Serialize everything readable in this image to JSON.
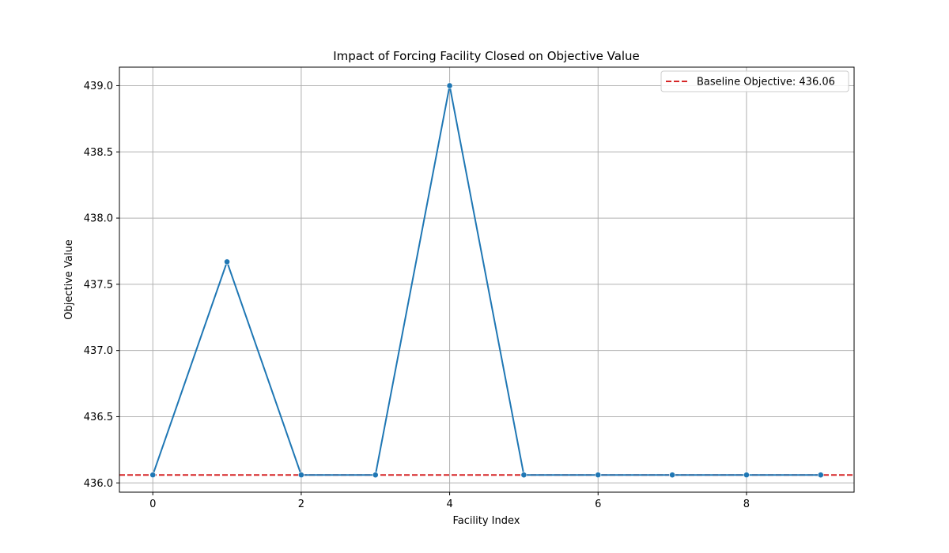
{
  "chart_data": {
    "type": "line",
    "title": "Impact of Forcing Facility Closed on Objective Value",
    "xlabel": "Facility Index",
    "ylabel": "Objective Value",
    "x": [
      0,
      1,
      2,
      3,
      4,
      5,
      6,
      7,
      8,
      9
    ],
    "series": [
      {
        "values": [
          436.06,
          437.67,
          436.06,
          436.06,
          439.0,
          436.06,
          436.06,
          436.06,
          436.06,
          436.06
        ],
        "color": "#1f77b4",
        "marker": "circle"
      }
    ],
    "reference_line": {
      "label": "Baseline Objective: 436.06",
      "value": 436.06,
      "color": "#d62728",
      "style": "dashed"
    },
    "xlim": [
      -0.45,
      9.45
    ],
    "ylim": [
      435.93,
      439.14
    ],
    "xticks": [
      0,
      2,
      4,
      6,
      8
    ],
    "xtick_labels": [
      "0",
      "2",
      "4",
      "6",
      "8"
    ],
    "yticks": [
      436.0,
      436.5,
      437.0,
      437.5,
      438.0,
      438.5,
      439.0
    ],
    "ytick_labels": [
      "436.0",
      "436.5",
      "437.0",
      "437.5",
      "438.0",
      "438.5",
      "439.0"
    ],
    "grid": true,
    "legend_position": "upper right"
  }
}
